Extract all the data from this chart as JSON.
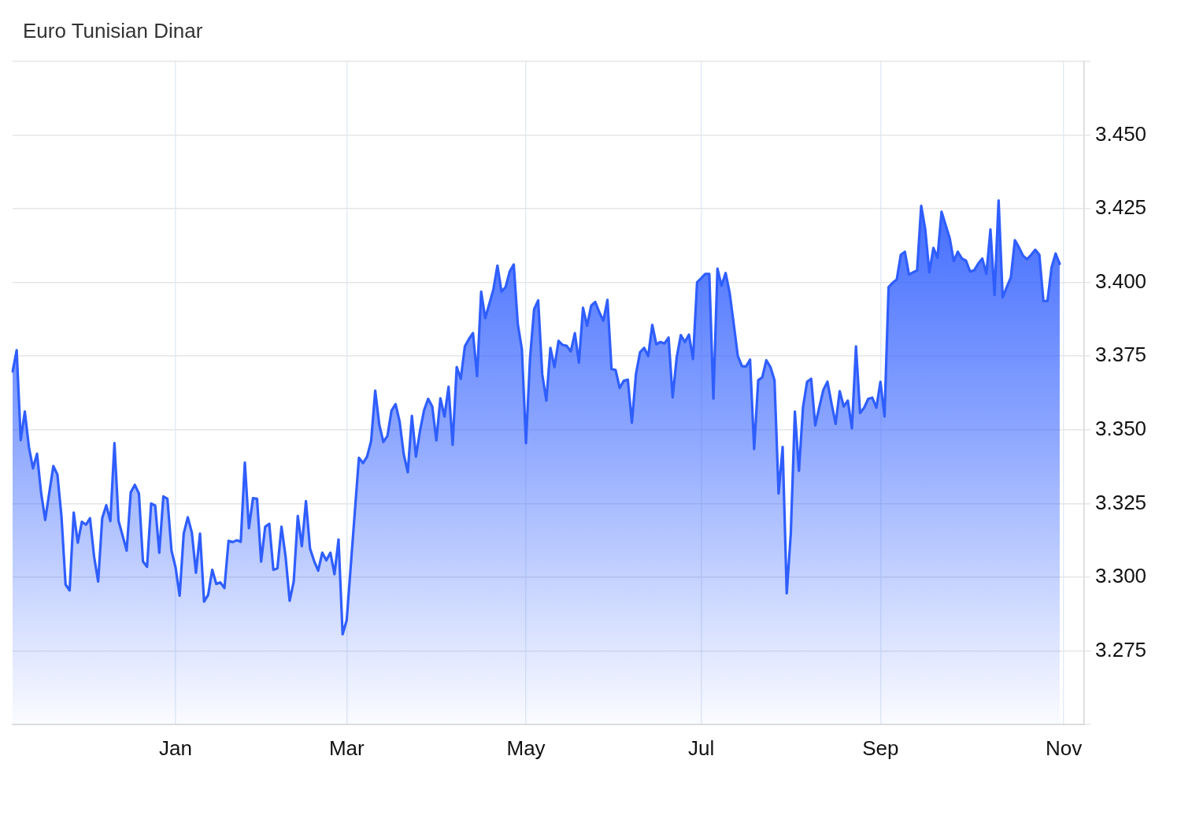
{
  "chart_data": {
    "type": "area",
    "title": "Euro Tunisian Dinar",
    "categories": [
      null,
      null,
      null,
      null,
      null,
      null,
      null,
      null,
      null,
      null,
      null,
      null,
      null,
      null,
      null,
      null,
      null,
      null,
      null,
      null,
      null,
      null,
      null,
      null,
      null,
      null,
      null,
      null,
      null,
      null,
      null,
      null,
      null,
      null,
      null,
      null,
      null,
      null,
      null,
      null,
      "Jan",
      null,
      null,
      null,
      null,
      null,
      null,
      null,
      null,
      null,
      null,
      null,
      null,
      null,
      null,
      null,
      null,
      null,
      null,
      null,
      null,
      null,
      null,
      null,
      null,
      null,
      null,
      null,
      null,
      null,
      null,
      null,
      null,
      null,
      null,
      null,
      null,
      null,
      null,
      null,
      null,
      null,
      "Mar",
      null,
      null,
      null,
      null,
      null,
      null,
      null,
      null,
      null,
      null,
      null,
      null,
      null,
      null,
      null,
      null,
      null,
      null,
      null,
      null,
      null,
      null,
      null,
      null,
      null,
      null,
      null,
      null,
      null,
      null,
      null,
      null,
      null,
      null,
      null,
      null,
      null,
      null,
      null,
      null,
      null,
      null,
      null,
      "May",
      null,
      null,
      null,
      null,
      null,
      null,
      null,
      null,
      null,
      null,
      null,
      null,
      null,
      null,
      null,
      null,
      null,
      null,
      null,
      null,
      null,
      null,
      null,
      null,
      null,
      null,
      null,
      null,
      null,
      null,
      null,
      null,
      null,
      null,
      null,
      null,
      null,
      null,
      null,
      null,
      null,
      null,
      "Jul",
      null,
      null,
      null,
      null,
      null,
      null,
      null,
      null,
      null,
      null,
      null,
      null,
      null,
      null,
      null,
      null,
      null,
      null,
      null,
      null,
      null,
      null,
      null,
      null,
      null,
      null,
      null,
      null,
      null,
      null,
      null,
      null,
      null,
      null,
      null,
      null,
      null,
      null,
      null,
      null,
      null,
      null,
      null,
      "Sep",
      null,
      null,
      null,
      null,
      null,
      null,
      null,
      null,
      null,
      null,
      null,
      null,
      null,
      null,
      null,
      null,
      null,
      null,
      null,
      null,
      null,
      null,
      null,
      null,
      null,
      null,
      null,
      null,
      null,
      null,
      null,
      null,
      null,
      null,
      null,
      null,
      null,
      null,
      null,
      null,
      null,
      null,
      null,
      null,
      "Nov",
      null,
      null,
      null,
      null,
      null
    ],
    "series": [
      {
        "color": "#2f5eff",
        "values": [
          3.3698,
          3.377,
          3.3465,
          3.3562,
          3.3442,
          3.3369,
          3.3419,
          3.3286,
          3.3194,
          3.3286,
          3.3377,
          3.3348,
          3.3206,
          3.2975,
          3.2955,
          3.3219,
          3.3117,
          3.3188,
          3.3178,
          3.32,
          3.307,
          3.2985,
          3.3201,
          3.3244,
          3.319,
          3.3455,
          3.3191,
          3.3141,
          3.309,
          3.3288,
          3.3313,
          3.3284,
          3.3053,
          3.3035,
          3.325,
          3.3243,
          3.3083,
          3.3274,
          3.3266,
          3.309,
          3.3033,
          3.2937,
          3.3148,
          3.3203,
          3.3151,
          3.3015,
          3.3148,
          3.2917,
          3.294,
          3.3025,
          3.2977,
          3.2982,
          3.2963,
          3.3123,
          3.3119,
          3.3125,
          3.312,
          3.3389,
          3.3166,
          3.3268,
          3.3266,
          3.3053,
          3.3171,
          3.3181,
          3.3025,
          3.303,
          3.3171,
          3.307,
          3.292,
          3.2985,
          3.3208,
          3.3105,
          3.3258,
          3.3097,
          3.3055,
          3.3022,
          3.3083,
          3.3057,
          3.3083,
          3.301,
          3.3128,
          3.2806,
          3.2854,
          3.3038,
          3.3222,
          3.3405,
          3.3387,
          3.3409,
          3.3462,
          3.3633,
          3.3517,
          3.3459,
          3.3479,
          3.3565,
          3.3587,
          3.3527,
          3.3417,
          3.3356,
          3.3547,
          3.3409,
          3.3497,
          3.3567,
          3.3605,
          3.3579,
          3.3464,
          3.3607,
          3.3545,
          3.3646,
          3.3449,
          3.3713,
          3.3673,
          3.3783,
          3.3808,
          3.3828,
          3.3682,
          3.3969,
          3.3879,
          3.3927,
          3.3976,
          3.4057,
          3.3969,
          3.3984,
          3.4037,
          3.4061,
          3.3858,
          3.3773,
          3.3455,
          3.3743,
          3.3909,
          3.3939,
          3.3688,
          3.3599,
          3.3778,
          3.3713,
          3.3802,
          3.3788,
          3.3785,
          3.3766,
          3.3828,
          3.3728,
          3.3914,
          3.3853,
          3.3921,
          3.3934,
          3.3899,
          3.387,
          3.3941,
          3.3706,
          3.3703,
          3.3642,
          3.3666,
          3.367,
          3.3524,
          3.369,
          3.3763,
          3.3778,
          3.375,
          3.3856,
          3.379,
          3.3798,
          3.3793,
          3.3813,
          3.361,
          3.3746,
          3.3821,
          3.3798,
          3.3823,
          3.374,
          3.4001,
          3.4014,
          3.4029,
          3.4029,
          3.3606,
          3.4047,
          3.3989,
          3.4032,
          3.3964,
          3.3858,
          3.375,
          3.3716,
          3.3715,
          3.3738,
          3.3435,
          3.3668,
          3.3678,
          3.3736,
          3.3713,
          3.3668,
          3.3284,
          3.3442,
          3.2945,
          3.3148,
          3.3562,
          3.3361,
          3.3577,
          3.3663,
          3.3673,
          3.3515,
          3.3577,
          3.3636,
          3.3663,
          3.3589,
          3.352,
          3.3631,
          3.3579,
          3.3599,
          3.3505,
          3.3783,
          3.3557,
          3.3575,
          3.3605,
          3.3609,
          3.3575,
          3.3663,
          3.3545,
          3.3984,
          3.3999,
          3.401,
          3.4094,
          3.4104,
          3.4027,
          3.4034,
          3.4041,
          3.426,
          3.418,
          3.4034,
          3.4117,
          3.4084,
          3.424,
          3.4195,
          3.415,
          3.4072,
          3.4104,
          3.4081,
          3.4074,
          3.4037,
          3.4041,
          3.4064,
          3.4081,
          3.4029,
          3.418,
          3.3957,
          3.4278,
          3.3949,
          3.3984,
          3.4017,
          3.4143,
          3.4119,
          3.4091,
          3.4079,
          3.4094,
          3.4111,
          3.4094,
          3.3937,
          3.3937,
          3.4051,
          3.4098,
          3.4063,
          null,
          null,
          null,
          null,
          null,
          null
        ]
      }
    ],
    "ylim": [
      3.25,
      3.475
    ],
    "yticks": [
      {
        "value": 3.25,
        "label": null
      },
      {
        "value": 3.275,
        "label": "3.275"
      },
      {
        "value": 3.3,
        "label": "3.300"
      },
      {
        "value": 3.325,
        "label": "3.325"
      },
      {
        "value": 3.35,
        "label": "3.350"
      },
      {
        "value": 3.375,
        "label": "3.375"
      },
      {
        "value": 3.4,
        "label": "3.400"
      },
      {
        "value": 3.425,
        "label": "3.425"
      },
      {
        "value": 3.45,
        "label": "3.450"
      },
      {
        "value": 3.475,
        "label": null
      }
    ],
    "grid": true,
    "marker": "none"
  }
}
